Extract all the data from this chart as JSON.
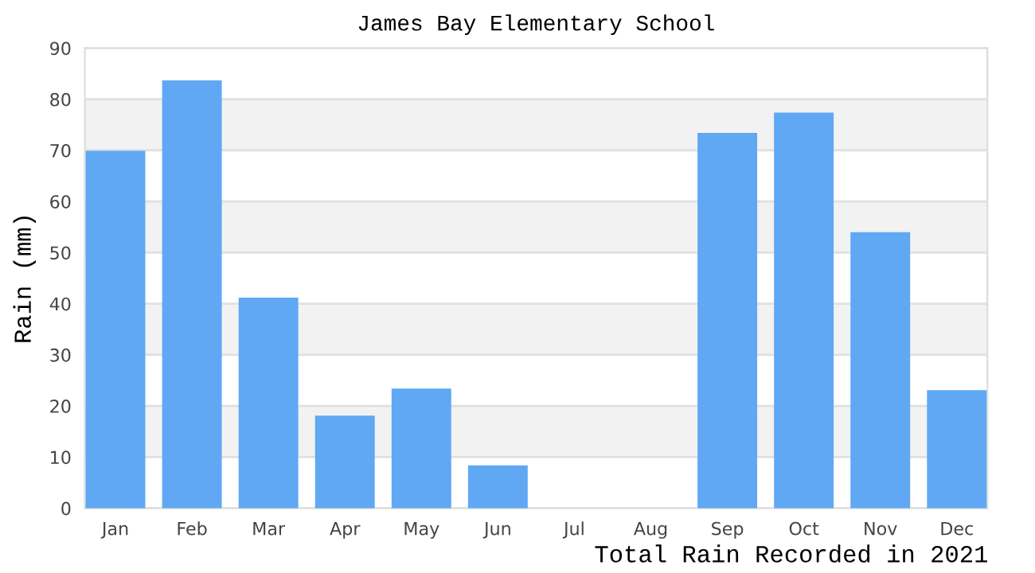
{
  "chart_data": {
    "type": "bar",
    "title": "James Bay Elementary School",
    "ylabel": "Rain (mm)",
    "categories": [
      "Jan",
      "Feb",
      "Mar",
      "Apr",
      "May",
      "Jun",
      "Jul",
      "Aug",
      "Sep",
      "Oct",
      "Nov",
      "Dec"
    ],
    "values": [
      69.9,
      83.7,
      41.2,
      18.1,
      23.4,
      8.4,
      0,
      0,
      73.4,
      77.4,
      54.0,
      23.1
    ],
    "color": "#60a8f4",
    "ylim": [
      0,
      90
    ],
    "yticks": [
      0,
      10,
      20,
      30,
      40,
      50,
      60,
      70,
      80,
      90
    ],
    "grid": "y",
    "annotations": [
      "Total Rain Recorded in 2021"
    ]
  }
}
